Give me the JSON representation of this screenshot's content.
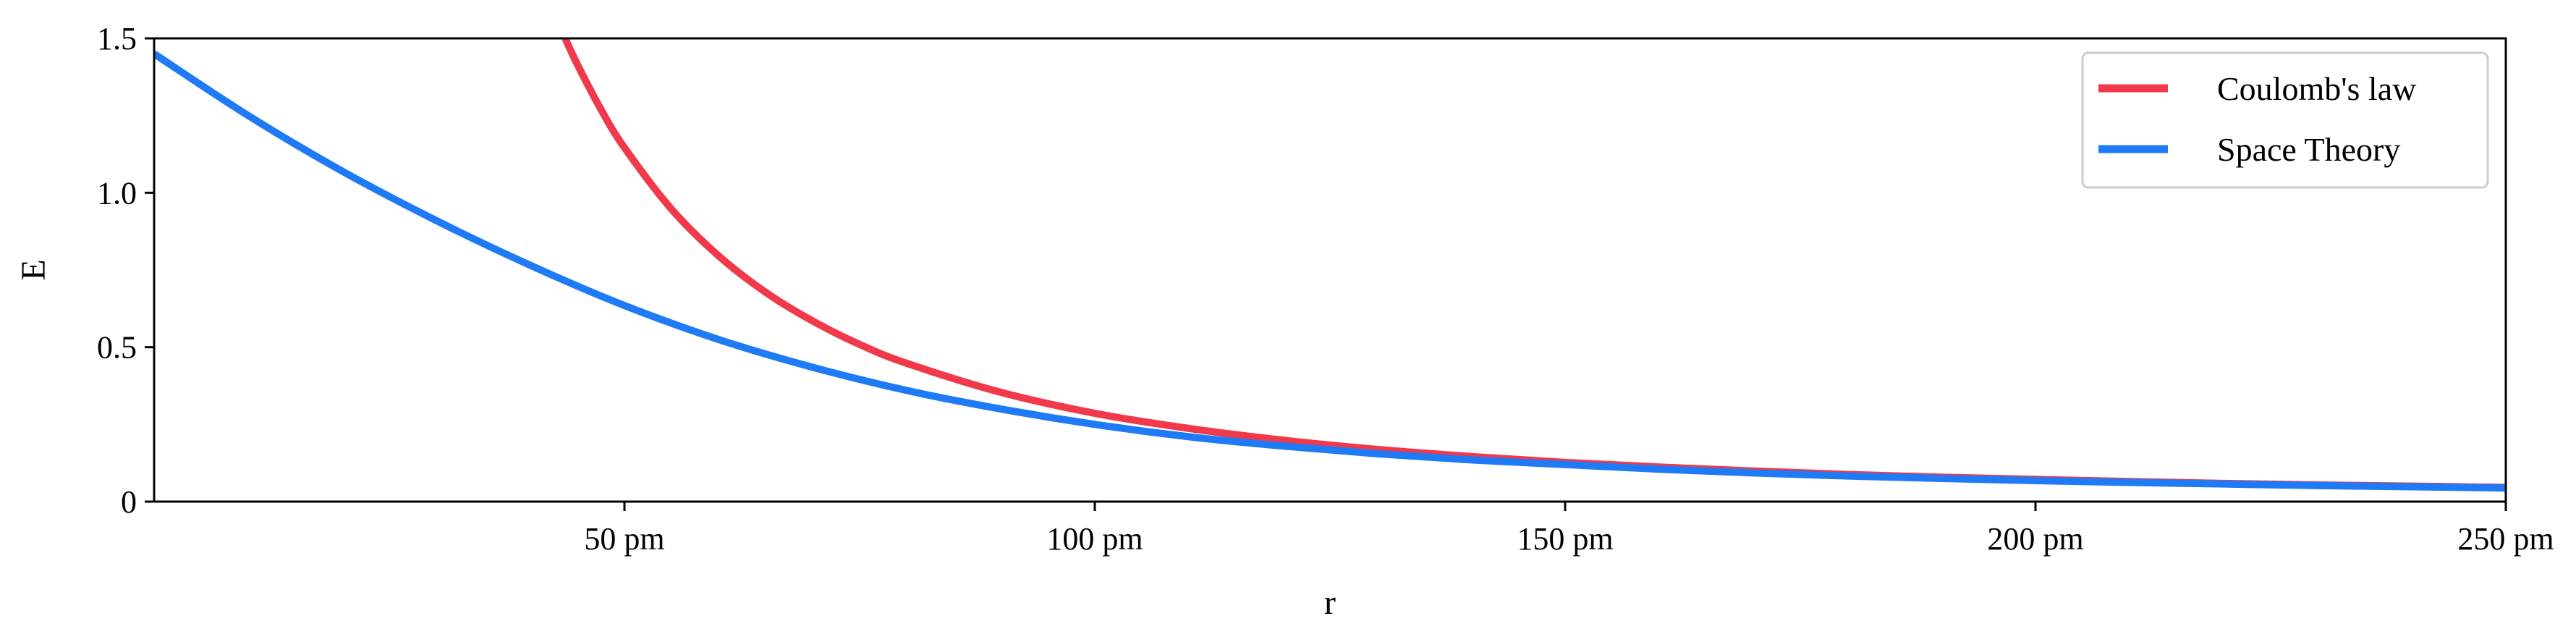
{
  "chart_data": {
    "type": "line",
    "xlabel": "r",
    "ylabel": "E",
    "xlim": [
      0,
      250
    ],
    "ylim": [
      0,
      1.5
    ],
    "x_ticks": [
      {
        "value": 50,
        "label": "50 pm"
      },
      {
        "value": 100,
        "label": "100 pm"
      },
      {
        "value": 150,
        "label": "150 pm"
      },
      {
        "value": 200,
        "label": "200 pm"
      },
      {
        "value": 250,
        "label": "250 pm"
      }
    ],
    "y_ticks": [
      {
        "value": 0,
        "label": "0"
      },
      {
        "value": 0.5,
        "label": "0.5"
      },
      {
        "value": 1.0,
        "label": "1.0"
      },
      {
        "value": 1.5,
        "label": "1.5"
      }
    ],
    "grid": false,
    "legend": "top-right",
    "series": [
      {
        "name": "Coulomb's law",
        "color": "#f0394a",
        "x": [
          43.7,
          45,
          47.5,
          50,
          55,
          60,
          65,
          70,
          75,
          80,
          90,
          100,
          110,
          120,
          130,
          140,
          150,
          160,
          170,
          180,
          190,
          200,
          210,
          220,
          230,
          240,
          250
        ],
        "y": [
          1.5,
          1.415,
          1.27,
          1.146,
          0.947,
          0.796,
          0.678,
          0.585,
          0.509,
          0.448,
          0.354,
          0.286,
          0.237,
          0.199,
          0.169,
          0.146,
          0.127,
          0.112,
          0.099,
          0.088,
          0.079,
          0.072,
          0.065,
          0.059,
          0.054,
          0.05,
          0.046
        ]
      },
      {
        "name": "Space Theory",
        "color": "#1f7bf5",
        "x": [
          0,
          10,
          20,
          30,
          40,
          50,
          60,
          70,
          80,
          90,
          100,
          110,
          120,
          130,
          140,
          150,
          160,
          170,
          180,
          190,
          200,
          210,
          220,
          230,
          240,
          250
        ],
        "y": [
          1.45,
          1.25,
          1.07,
          0.91,
          0.765,
          0.635,
          0.525,
          0.435,
          0.36,
          0.3,
          0.25,
          0.21,
          0.18,
          0.155,
          0.135,
          0.12,
          0.105,
          0.093,
          0.083,
          0.075,
          0.068,
          0.062,
          0.057,
          0.052,
          0.048,
          0.044
        ]
      }
    ]
  }
}
